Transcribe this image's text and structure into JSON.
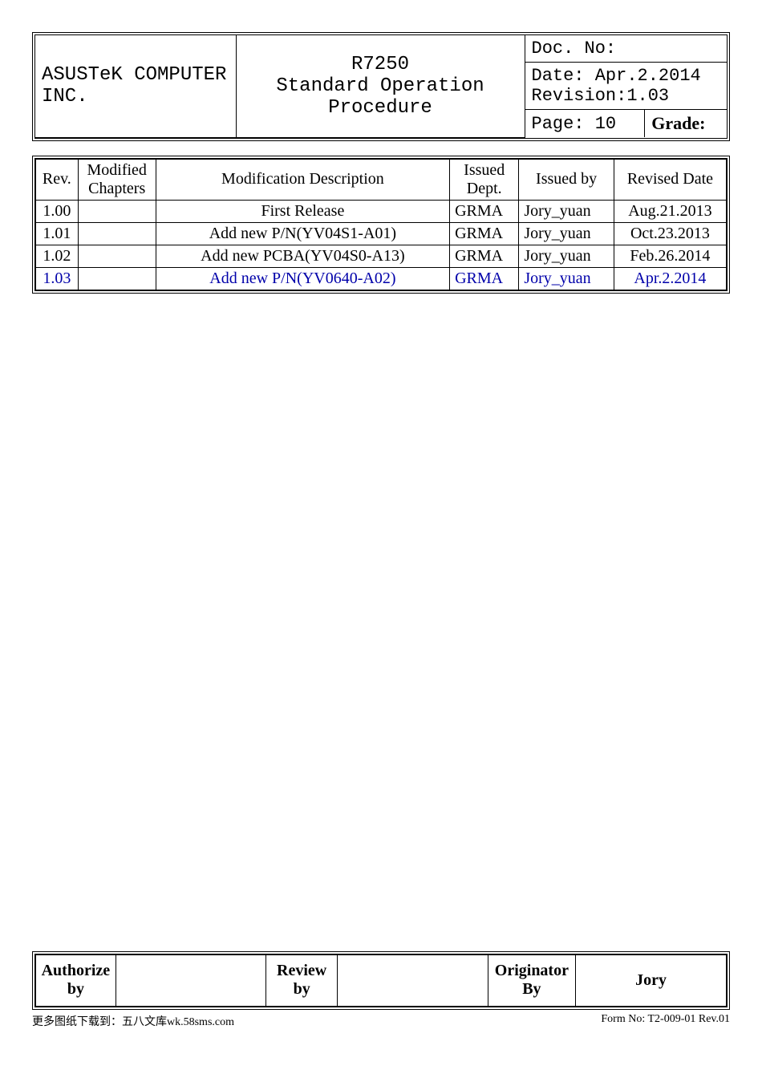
{
  "header": {
    "company": "ASUSTeK COMPUTER INC.",
    "title_line1": "R7250",
    "title_line2": "Standard Operation Procedure",
    "doc_no_label": "Doc. No:",
    "date": "Date: Apr.2.2014",
    "revision": "Revision:1.03",
    "page": "Page: 10",
    "grade_label": "Grade:"
  },
  "rev_table": {
    "headers": {
      "rev": "Rev.",
      "modified": "Modified Chapters",
      "desc": "Modification Description",
      "dept": "Issued Dept.",
      "by": "Issued by",
      "date": "Revised Date"
    },
    "rows": [
      {
        "rev": "1.00",
        "mod": "",
        "desc": "First Release",
        "dept": "GRMA",
        "by": "Jory_yuan",
        "date": "Aug.21.2013",
        "blue": false
      },
      {
        "rev": "1.01",
        "mod": "",
        "desc": "Add new P/N(YV04S1-A01)",
        "dept": "GRMA",
        "by": "Jory_yuan",
        "date": "Oct.23.2013",
        "blue": false
      },
      {
        "rev": "1.02",
        "mod": "",
        "desc": "Add new PCBA(YV04S0-A13)",
        "dept": "GRMA",
        "by": "Jory_yuan",
        "date": "Feb.26.2014",
        "blue": false
      },
      {
        "rev": "1.03",
        "mod": "",
        "desc": "Add new P/N(YV0640-A02)",
        "dept": "GRMA",
        "by": "Jory_yuan",
        "date": "Apr.2.2014",
        "blue": true
      }
    ]
  },
  "signature": {
    "authorize_label": "Authorize by",
    "authorize_val": "",
    "review_label": "Review by",
    "review_val": "",
    "originator_label": "Originator By",
    "originator_val": "Jory"
  },
  "footer": {
    "left": "更多图纸下载到：五八文库wk.58sms.com",
    "right": "Form No: T2-009-01 Rev.01"
  },
  "colors": {
    "link_blue": "#0000aa",
    "border": "#000000",
    "bg": "#ffffff"
  }
}
